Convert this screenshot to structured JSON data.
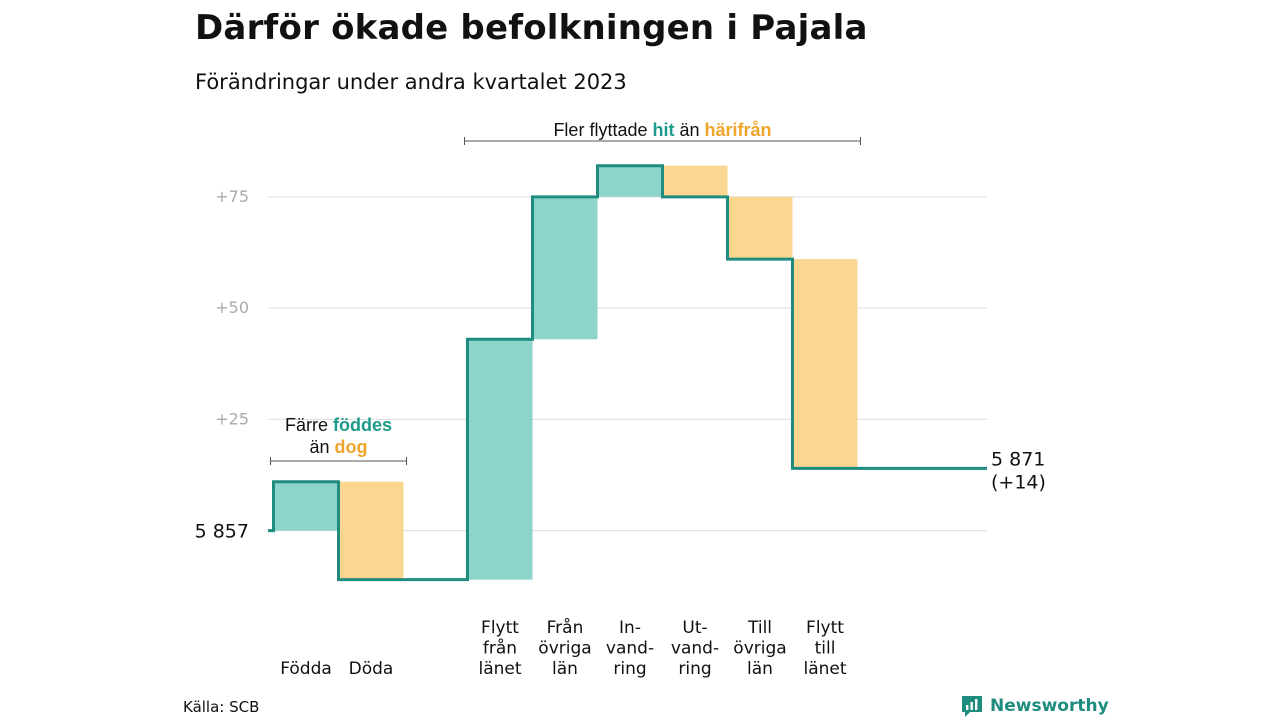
{
  "title": "Därför ökade befolkningen i Pajala",
  "subtitle": "Förändringar under andra kvartalet 2023",
  "source": "Källa: SCB",
  "brand": "Newsworthy",
  "colors": {
    "increase_fill": "#8dd5cb",
    "decrease_fill": "#fad690",
    "step_line": "#1e8c7e",
    "accent_teal": "#1e9b8a",
    "accent_orange": "#f0a52a",
    "grid": "#dcdcdc",
    "tick_text": "#aaaaaa"
  },
  "chart_data": {
    "type": "waterfall",
    "start_value": 5857,
    "start_label": "5  857",
    "end_label_value": "5 871",
    "end_label_change": "(+14)",
    "y_ticks": [
      {
        "value": 25,
        "label": "+25"
      },
      {
        "value": 50,
        "label": "+50"
      },
      {
        "value": 75,
        "label": "+75"
      }
    ],
    "ylim": [
      -14,
      88
    ],
    "grid": true,
    "steps": [
      {
        "label": [
          "Födda"
        ],
        "change": 11
      },
      {
        "label": [
          "Döda"
        ],
        "change": -22
      },
      {
        "label": [
          "Flytt",
          "från",
          "länet"
        ],
        "change": 54
      },
      {
        "label": [
          "Från",
          "övriga",
          "län"
        ],
        "change": 32
      },
      {
        "label": [
          "In-",
          "vand-",
          "ring"
        ],
        "change": 7
      },
      {
        "label": [
          "Ut-",
          "vand-",
          "ring"
        ],
        "change": -7
      },
      {
        "label": [
          "Till",
          "övriga",
          "län"
        ],
        "change": -14
      },
      {
        "label": [
          "Flytt",
          "till",
          "länet"
        ],
        "change": -47
      }
    ],
    "end_change": 14,
    "annotations": [
      {
        "lines": [
          [
            {
              "text": "Färre ",
              "tone": "plain"
            },
            {
              "text": "föddes",
              "tone": "teal"
            }
          ],
          [
            {
              "text": "än ",
              "tone": "plain"
            },
            {
              "text": "dog",
              "tone": "orange"
            }
          ]
        ],
        "spans_steps": [
          0,
          1
        ]
      },
      {
        "lines": [
          [
            {
              "text": "Fler flyttade ",
              "tone": "plain"
            },
            {
              "text": "hit",
              "tone": "teal"
            },
            {
              "text": " än ",
              "tone": "plain"
            },
            {
              "text": "härifrån",
              "tone": "orange"
            }
          ]
        ],
        "spans_steps": [
          2,
          7
        ]
      }
    ]
  }
}
